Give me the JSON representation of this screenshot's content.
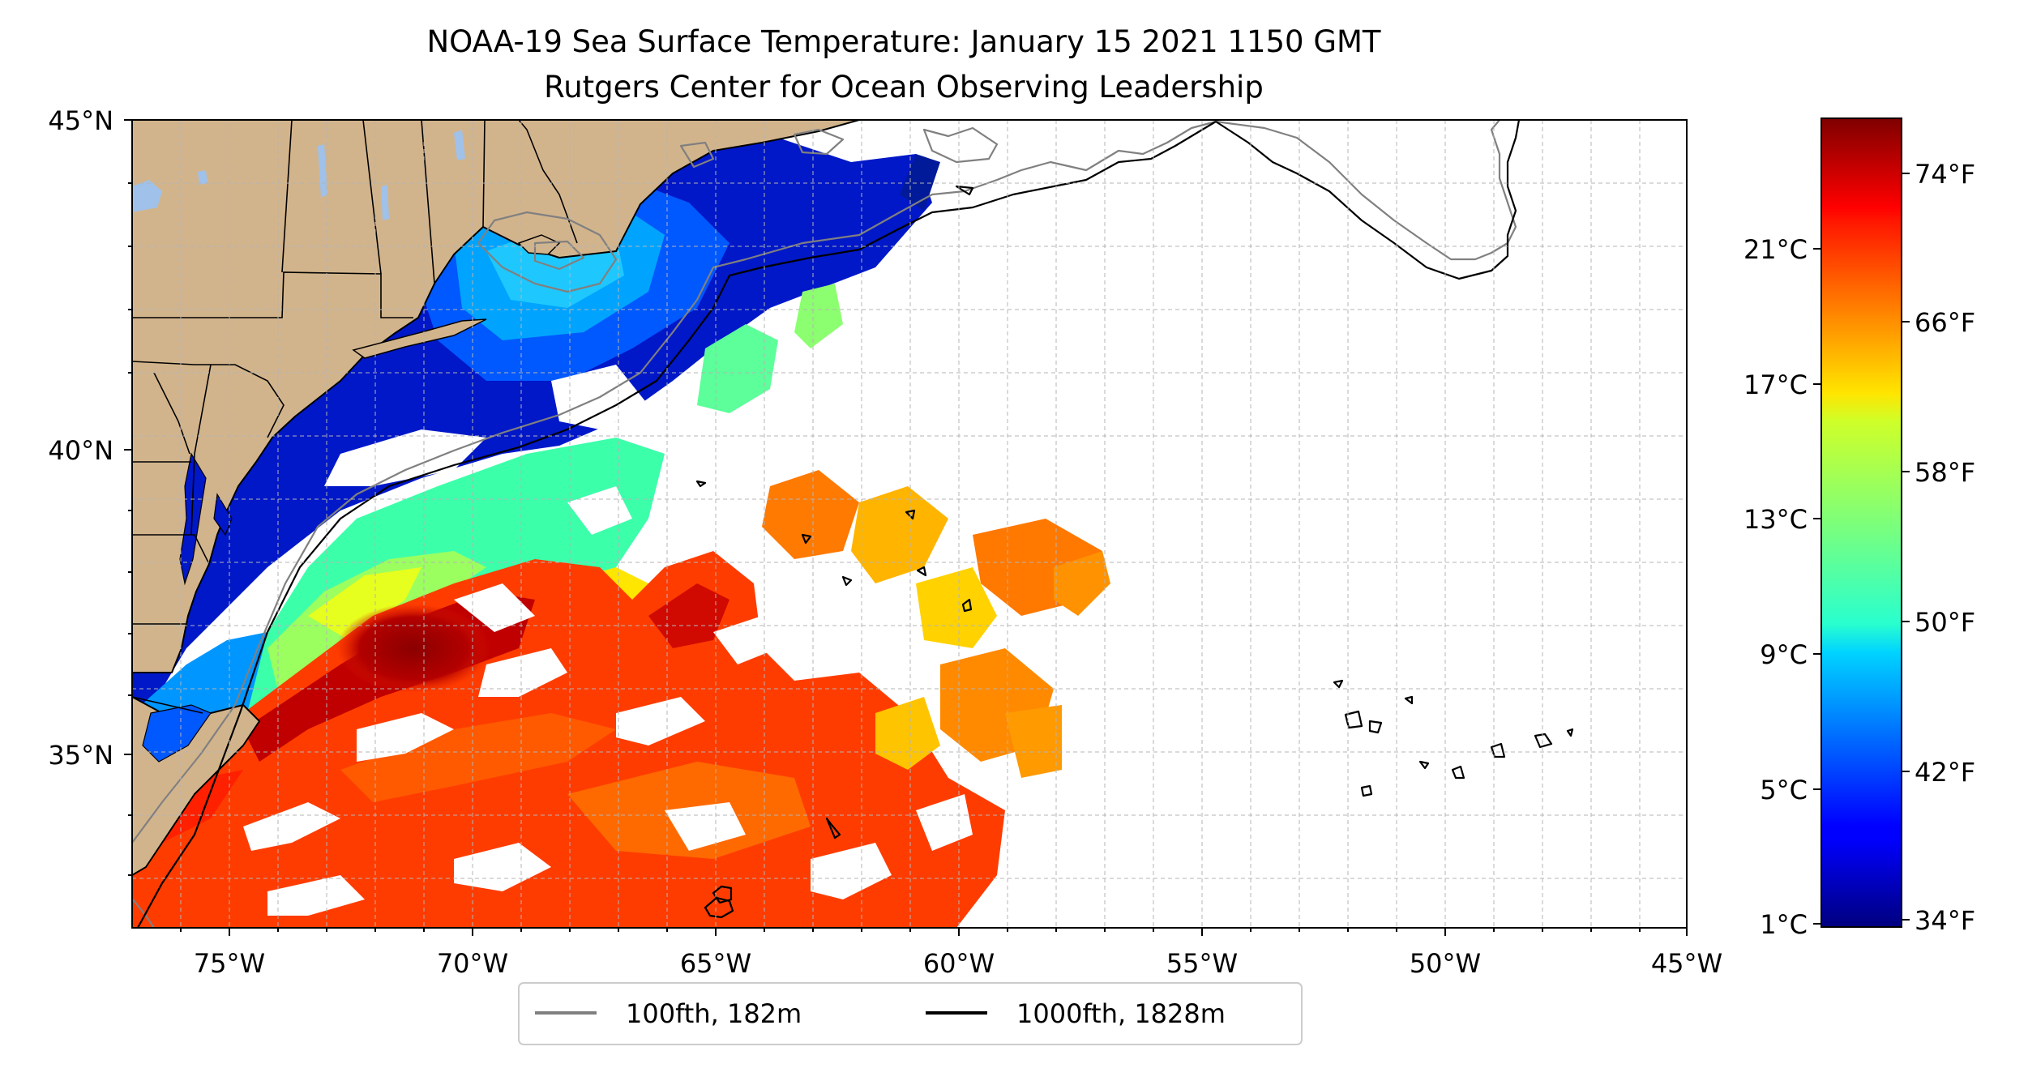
{
  "title": {
    "line1": "NOAA-19 Sea Surface Temperature: January 15 2021 1150 GMT",
    "line2": "Rutgers Center for Ocean Observing Leadership"
  },
  "map": {
    "lon_range": [
      -77,
      -45
    ],
    "lat_range": [
      32.4,
      45
    ],
    "x_ticks": [
      {
        "value": -75,
        "label": "75°W"
      },
      {
        "value": -70,
        "label": "70°W"
      },
      {
        "value": -65,
        "label": "65°W"
      },
      {
        "value": -60,
        "label": "60°W"
      },
      {
        "value": -55,
        "label": "55°W"
      },
      {
        "value": -50,
        "label": "50°W"
      },
      {
        "value": -45,
        "label": "45°W"
      }
    ],
    "y_ticks": [
      {
        "value": 45,
        "label": "45°N"
      },
      {
        "value": 40,
        "label": "40°N"
      },
      {
        "value": 35,
        "label": "35°N"
      }
    ],
    "gridlines": true,
    "land_color": "#d2b48c",
    "lake_color": "#9fc1ea"
  },
  "colorbar": {
    "colormap": "jet",
    "min_f": 33,
    "max_f": 77,
    "celsius_ticks": [
      {
        "value": 1,
        "label": "1°C"
      },
      {
        "value": 5,
        "label": "5°C"
      },
      {
        "value": 9,
        "label": "9°C"
      },
      {
        "value": 13,
        "label": "13°C"
      },
      {
        "value": 17,
        "label": "17°C"
      },
      {
        "value": 21,
        "label": "21°C"
      }
    ],
    "fahrenheit_ticks": [
      {
        "value": 34,
        "label": "34°F"
      },
      {
        "value": 42,
        "label": "42°F"
      },
      {
        "value": 50,
        "label": "50°F"
      },
      {
        "value": 58,
        "label": "58°F"
      },
      {
        "value": 66,
        "label": "66°F"
      },
      {
        "value": 74,
        "label": "74°F"
      }
    ]
  },
  "legend": {
    "placement": "below",
    "items": [
      {
        "label": "100fth, 182m",
        "color": "#808080"
      },
      {
        "label": "1000fth, 1828m",
        "color": "#000000"
      }
    ]
  }
}
